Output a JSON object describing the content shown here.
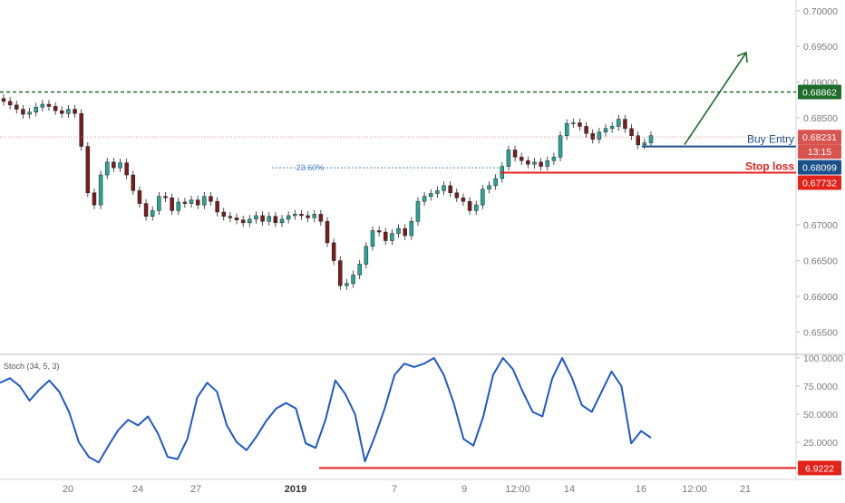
{
  "chart_data": [
    {
      "type": "candlestick",
      "x_tick_labels": [
        "20",
        "24",
        "27",
        "2019",
        "7",
        "9",
        "12:00",
        "14",
        "16",
        "12:00",
        "21"
      ],
      "y_tick_labels": [
        "0.70000",
        "0.69500",
        "0.69000",
        "0.68500",
        "0.67000",
        "0.66500",
        "0.66000",
        "0.65500"
      ],
      "ylim": [
        0.652,
        0.7015
      ],
      "series_close": [
        0.6873,
        0.6868,
        0.6862,
        0.6855,
        0.6858,
        0.6865,
        0.6869,
        0.6866,
        0.686,
        0.6856,
        0.6862,
        0.6856,
        0.681,
        0.6745,
        0.6728,
        0.677,
        0.6788,
        0.678,
        0.6787,
        0.677,
        0.6748,
        0.673,
        0.6712,
        0.672,
        0.674,
        0.6738,
        0.672,
        0.6732,
        0.673,
        0.6735,
        0.6728,
        0.674,
        0.6733,
        0.6718,
        0.6712,
        0.671,
        0.6707,
        0.6703,
        0.6708,
        0.6713,
        0.6705,
        0.6712,
        0.6703,
        0.6708,
        0.6713,
        0.6715,
        0.6713,
        0.671,
        0.6715,
        0.6705,
        0.6675,
        0.665,
        0.6615,
        0.6618,
        0.663,
        0.6645,
        0.667,
        0.6692,
        0.669,
        0.6678,
        0.6688,
        0.6695,
        0.6685,
        0.6705,
        0.6733,
        0.674,
        0.6744,
        0.6748,
        0.6755,
        0.6745,
        0.6738,
        0.6733,
        0.672,
        0.6728,
        0.675,
        0.6755,
        0.6765,
        0.6782,
        0.6805,
        0.6795,
        0.679,
        0.6785,
        0.6788,
        0.6782,
        0.679,
        0.6795,
        0.6825,
        0.6842,
        0.6843,
        0.6838,
        0.6828,
        0.682,
        0.683,
        0.6835,
        0.6838,
        0.6848,
        0.6835,
        0.6825,
        0.6812,
        0.6815,
        0.6825
      ],
      "annotations": [
        {
          "label": "23.60%"
        },
        {
          "label": "Buy Entry"
        },
        {
          "label": "Stop loss"
        }
      ],
      "price_labels": [
        {
          "text": "0.68862",
          "value": 0.68862,
          "color": "#1e6b2a"
        },
        {
          "text": "0.68231",
          "value": 0.68231,
          "color": "#d9534f"
        },
        {
          "text": "13:15",
          "color": "#d9534f"
        },
        {
          "text": "0.68099",
          "value": 0.68099,
          "color": "#1a4f8a"
        },
        {
          "text": "0.67732",
          "value": 0.67732,
          "color": "#e3221a"
        }
      ],
      "lines": {
        "target_dashed": 0.68862,
        "last_price": 0.68231,
        "fib_236": 0.678,
        "buy_entry": 0.68099,
        "stop_loss": 0.67732
      },
      "colors": {
        "up": "#26a69a",
        "down": "#7a1c1c",
        "target": "#1e6b2a",
        "entry": "#1a4f8a",
        "stop": "#e3221a",
        "fib": "#4a86c8"
      }
    },
    {
      "type": "line",
      "title": "Stoch (34, 5, 3)",
      "y_tick_labels": [
        "100.0000",
        "75.0000",
        "50.0000",
        "25.0000"
      ],
      "ylim": [
        0,
        100
      ],
      "values": [
        78,
        82,
        75,
        62,
        72,
        80,
        70,
        52,
        25,
        12,
        7,
        22,
        36,
        45,
        40,
        48,
        33,
        12,
        10,
        28,
        65,
        78,
        70,
        40,
        25,
        18,
        30,
        44,
        55,
        60,
        55,
        24,
        20,
        45,
        80,
        68,
        50,
        8,
        30,
        55,
        85,
        95,
        92,
        95,
        100,
        85,
        60,
        28,
        22,
        48,
        85,
        100,
        90,
        70,
        52,
        48,
        82,
        100,
        82,
        58,
        52,
        70,
        88,
        75,
        24,
        35,
        29
      ],
      "threshold": {
        "text": "6.9222",
        "value": 6.9222,
        "color": "#e3221a"
      },
      "line_color": "#1e58c8"
    }
  ]
}
